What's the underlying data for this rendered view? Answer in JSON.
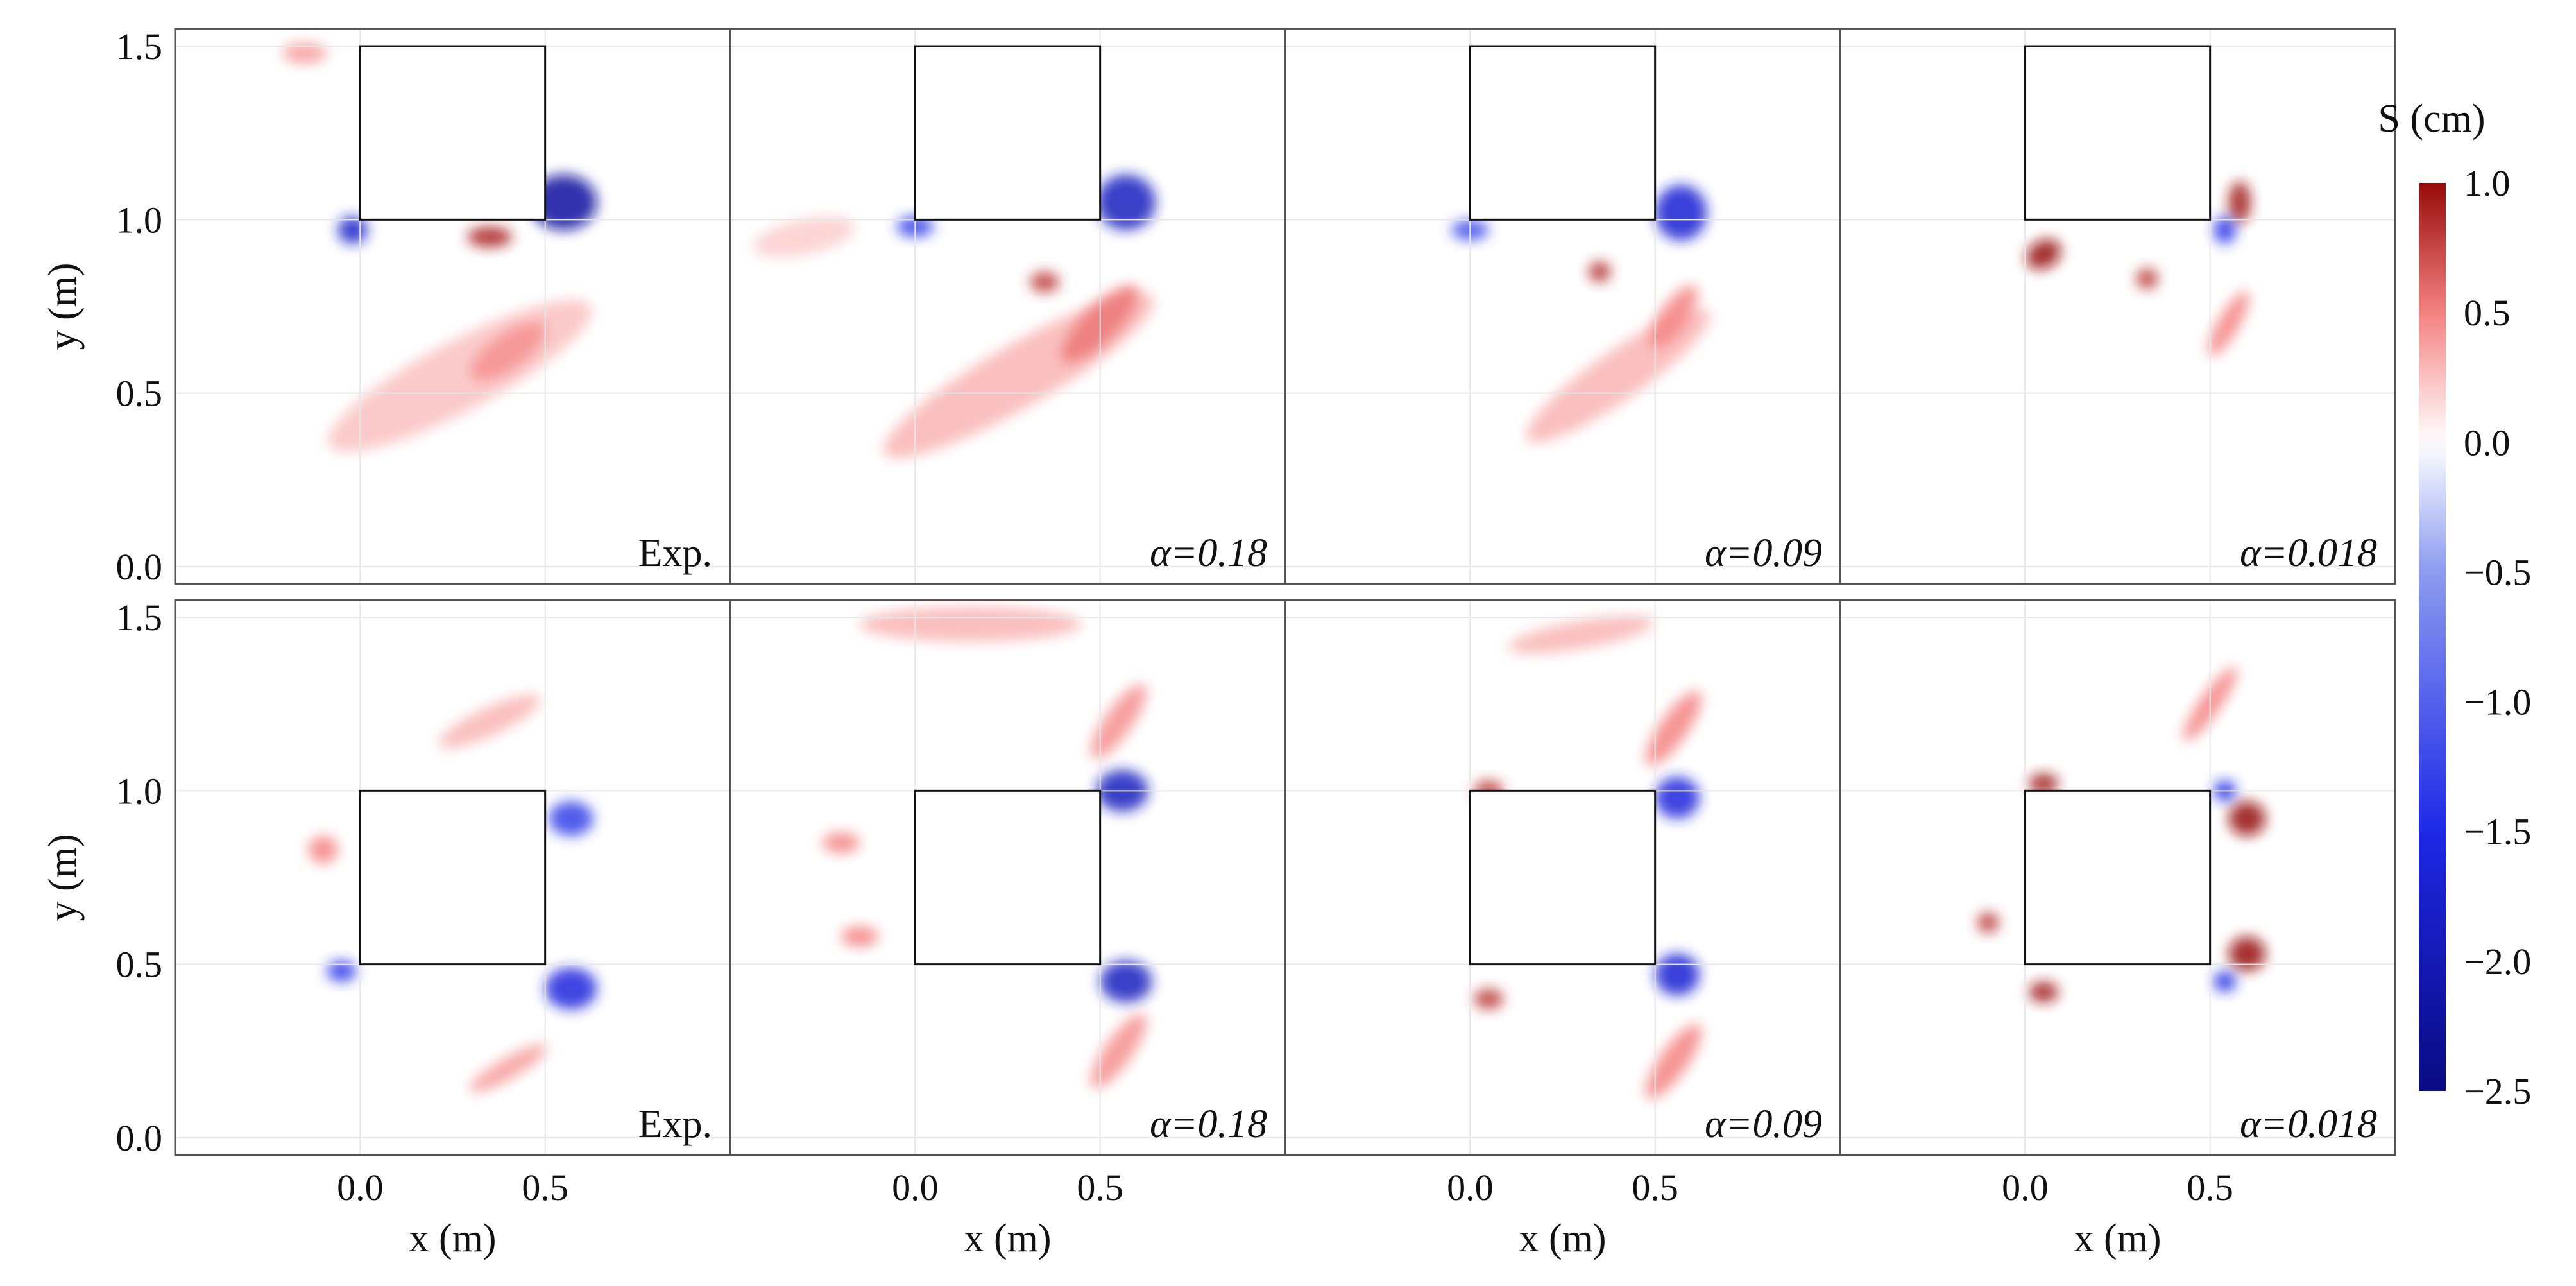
{
  "chart_data": {
    "type": "heatmap",
    "xlabel": "x (m)",
    "ylabel": "y (m)",
    "xlim": [
      -0.5,
      1.0
    ],
    "ylim": [
      -0.05,
      1.55
    ],
    "xticks": [
      "0.0",
      "0.5"
    ],
    "yticks": [
      "0.0",
      "0.5",
      "1.0",
      "1.5"
    ],
    "colorbar": {
      "title": "S (cm)",
      "min": -2.5,
      "max": 1.0,
      "ticks": [
        "1.0",
        "0.5",
        "0.0",
        "−0.5",
        "−1.0",
        "−1.5",
        "−2.0",
        "−2.5"
      ],
      "tick_values": [
        1.0,
        0.5,
        0.0,
        -0.5,
        -1.0,
        -1.5,
        -2.0,
        -2.5
      ]
    },
    "rows": [
      {
        "obstacles": [
          {
            "x0": 0.0,
            "x1": 0.5,
            "y0": 1.0,
            "y1": 1.5
          }
        ],
        "panels": [
          {
            "label": "Exp.",
            "italic": false,
            "features": [
              {
                "x": 0.27,
                "y": 0.55,
                "rx": 0.4,
                "ry": 0.1,
                "rot": -28,
                "value": 0.25
              },
              {
                "x": 0.4,
                "y": 0.62,
                "rx": 0.12,
                "ry": 0.05,
                "rot": -35,
                "value": 0.45
              },
              {
                "x": 0.35,
                "y": 0.95,
                "rx": 0.06,
                "ry": 0.03,
                "rot": 0,
                "value": 0.9
              },
              {
                "x": 0.55,
                "y": 1.05,
                "rx": 0.09,
                "ry": 0.08,
                "rot": 0,
                "value": -2.2
              },
              {
                "x": -0.02,
                "y": 0.97,
                "rx": 0.04,
                "ry": 0.04,
                "rot": 0,
                "value": -1.8
              },
              {
                "x": -0.15,
                "y": 1.48,
                "rx": 0.06,
                "ry": 0.03,
                "rot": 0,
                "value": 0.4
              }
            ]
          },
          {
            "label": "α=0.18",
            "italic": true,
            "features": [
              {
                "x": 0.28,
                "y": 0.55,
                "rx": 0.42,
                "ry": 0.09,
                "rot": -30,
                "value": 0.3
              },
              {
                "x": 0.5,
                "y": 0.7,
                "rx": 0.14,
                "ry": 0.05,
                "rot": -45,
                "value": 0.55
              },
              {
                "x": 0.35,
                "y": 0.82,
                "rx": 0.04,
                "ry": 0.03,
                "rot": 0,
                "value": 0.8
              },
              {
                "x": 0.57,
                "y": 1.05,
                "rx": 0.08,
                "ry": 0.08,
                "rot": 0,
                "value": -1.9
              },
              {
                "x": 0.0,
                "y": 0.98,
                "rx": 0.05,
                "ry": 0.03,
                "rot": 0,
                "value": -1.3
              },
              {
                "x": -0.3,
                "y": 0.95,
                "rx": 0.14,
                "ry": 0.05,
                "rot": -12,
                "value": 0.2
              }
            ]
          },
          {
            "label": "α=0.09",
            "italic": true,
            "features": [
              {
                "x": 0.4,
                "y": 0.55,
                "rx": 0.3,
                "ry": 0.07,
                "rot": -35,
                "value": 0.3
              },
              {
                "x": 0.55,
                "y": 0.72,
                "rx": 0.1,
                "ry": 0.04,
                "rot": -55,
                "value": 0.5
              },
              {
                "x": 0.35,
                "y": 0.85,
                "rx": 0.03,
                "ry": 0.03,
                "rot": 0,
                "value": 0.85
              },
              {
                "x": 0.57,
                "y": 1.02,
                "rx": 0.07,
                "ry": 0.08,
                "rot": 0,
                "value": -1.7
              },
              {
                "x": 0.0,
                "y": 0.97,
                "rx": 0.05,
                "ry": 0.03,
                "rot": 0,
                "value": -1.2
              }
            ]
          },
          {
            "label": "α=0.018",
            "italic": true,
            "features": [
              {
                "x": 0.05,
                "y": 0.9,
                "rx": 0.05,
                "ry": 0.04,
                "rot": -30,
                "value": 1.0
              },
              {
                "x": 0.33,
                "y": 0.83,
                "rx": 0.03,
                "ry": 0.03,
                "rot": 0,
                "value": 0.8
              },
              {
                "x": 0.55,
                "y": 0.7,
                "rx": 0.1,
                "ry": 0.03,
                "rot": -60,
                "value": 0.5
              },
              {
                "x": 0.58,
                "y": 1.05,
                "rx": 0.03,
                "ry": 0.06,
                "rot": 0,
                "value": 0.95
              },
              {
                "x": 0.54,
                "y": 0.97,
                "rx": 0.03,
                "ry": 0.04,
                "rot": 0,
                "value": -1.4
              }
            ]
          }
        ]
      },
      {
        "obstacles": [
          {
            "x0": 0.0,
            "x1": 0.5,
            "y0": 0.5,
            "y1": 1.0
          }
        ],
        "panels": [
          {
            "label": "Exp.",
            "italic": false,
            "features": [
              {
                "x": 0.57,
                "y": 0.92,
                "rx": 0.06,
                "ry": 0.05,
                "rot": 0,
                "value": -1.3
              },
              {
                "x": 0.57,
                "y": 0.43,
                "rx": 0.07,
                "ry": 0.06,
                "rot": 0,
                "value": -1.6
              },
              {
                "x": -0.05,
                "y": 0.48,
                "rx": 0.04,
                "ry": 0.03,
                "rot": 0,
                "value": -1.4
              },
              {
                "x": 0.4,
                "y": 0.2,
                "rx": 0.12,
                "ry": 0.03,
                "rot": -30,
                "value": 0.4
              },
              {
                "x": -0.1,
                "y": 0.83,
                "rx": 0.04,
                "ry": 0.04,
                "rot": 0,
                "value": 0.5
              },
              {
                "x": 0.35,
                "y": 1.2,
                "rx": 0.15,
                "ry": 0.04,
                "rot": -25,
                "value": 0.3
              }
            ]
          },
          {
            "label": "α=0.18",
            "italic": true,
            "features": [
              {
                "x": 0.15,
                "y": 1.48,
                "rx": 0.3,
                "ry": 0.05,
                "rot": 0,
                "value": 0.3
              },
              {
                "x": 0.55,
                "y": 1.2,
                "rx": 0.12,
                "ry": 0.04,
                "rot": -55,
                "value": 0.45
              },
              {
                "x": 0.56,
                "y": 1.0,
                "rx": 0.07,
                "ry": 0.06,
                "rot": 0,
                "value": -1.9
              },
              {
                "x": 0.57,
                "y": 0.45,
                "rx": 0.07,
                "ry": 0.06,
                "rot": 0,
                "value": -1.9
              },
              {
                "x": 0.55,
                "y": 0.25,
                "rx": 0.12,
                "ry": 0.04,
                "rot": -55,
                "value": 0.45
              },
              {
                "x": -0.2,
                "y": 0.85,
                "rx": 0.05,
                "ry": 0.03,
                "rot": 0,
                "value": 0.5
              },
              {
                "x": -0.15,
                "y": 0.58,
                "rx": 0.05,
                "ry": 0.03,
                "rot": 0,
                "value": 0.5
              }
            ]
          },
          {
            "label": "α=0.09",
            "italic": true,
            "features": [
              {
                "x": 0.3,
                "y": 1.45,
                "rx": 0.2,
                "ry": 0.04,
                "rot": -10,
                "value": 0.3
              },
              {
                "x": 0.55,
                "y": 1.18,
                "rx": 0.12,
                "ry": 0.04,
                "rot": -55,
                "value": 0.5
              },
              {
                "x": 0.56,
                "y": 0.98,
                "rx": 0.06,
                "ry": 0.06,
                "rot": 0,
                "value": -1.6
              },
              {
                "x": 0.56,
                "y": 0.47,
                "rx": 0.06,
                "ry": 0.06,
                "rot": 0,
                "value": -1.7
              },
              {
                "x": 0.55,
                "y": 0.22,
                "rx": 0.12,
                "ry": 0.04,
                "rot": -55,
                "value": 0.5
              },
              {
                "x": 0.05,
                "y": 1.0,
                "rx": 0.04,
                "ry": 0.03,
                "rot": 0,
                "value": 0.8
              },
              {
                "x": 0.05,
                "y": 0.4,
                "rx": 0.04,
                "ry": 0.03,
                "rot": 0,
                "value": 0.8
              }
            ]
          },
          {
            "label": "α=0.018",
            "italic": true,
            "features": [
              {
                "x": 0.6,
                "y": 0.92,
                "rx": 0.05,
                "ry": 0.05,
                "rot": 0,
                "value": 1.0
              },
              {
                "x": 0.6,
                "y": 0.53,
                "rx": 0.05,
                "ry": 0.05,
                "rot": 0,
                "value": 1.0
              },
              {
                "x": 0.54,
                "y": 1.0,
                "rx": 0.03,
                "ry": 0.03,
                "rot": 0,
                "value": -1.5
              },
              {
                "x": 0.54,
                "y": 0.45,
                "rx": 0.03,
                "ry": 0.03,
                "rot": 0,
                "value": -1.5
              },
              {
                "x": 0.05,
                "y": 1.02,
                "rx": 0.04,
                "ry": 0.03,
                "rot": 0,
                "value": 0.95
              },
              {
                "x": 0.05,
                "y": 0.42,
                "rx": 0.04,
                "ry": 0.03,
                "rot": 0,
                "value": 0.95
              },
              {
                "x": -0.1,
                "y": 0.62,
                "rx": 0.03,
                "ry": 0.03,
                "rot": 0,
                "value": 0.8
              },
              {
                "x": 0.5,
                "y": 1.25,
                "rx": 0.12,
                "ry": 0.03,
                "rot": -55,
                "value": 0.5
              }
            ]
          }
        ]
      }
    ]
  }
}
